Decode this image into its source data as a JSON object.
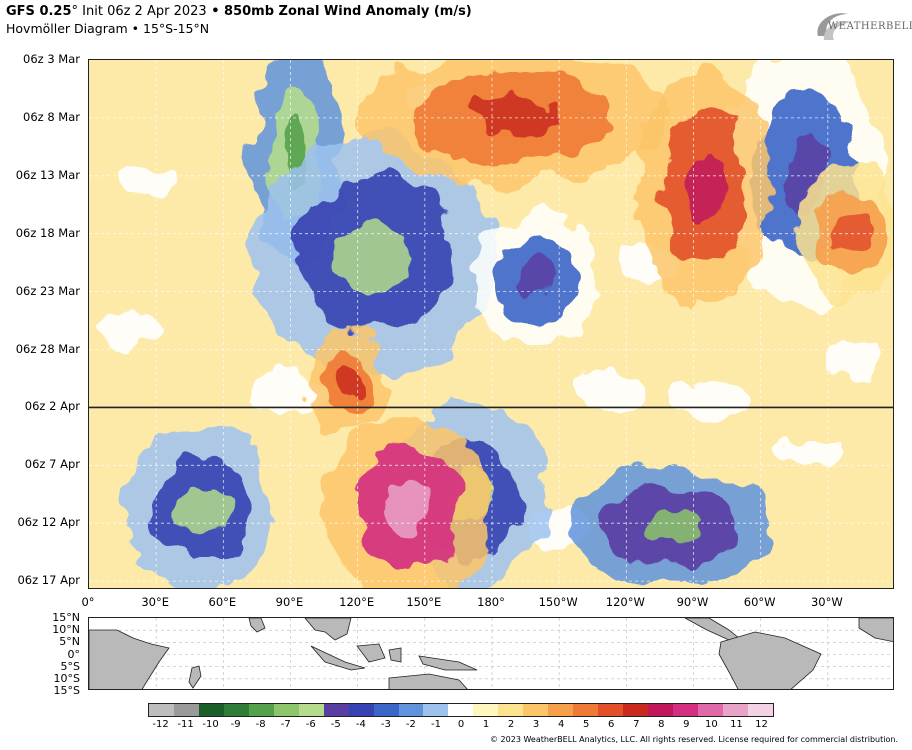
{
  "title": {
    "model": "GFS 0.25",
    "degree": "°",
    "init": " Init 06z 2 Apr 2023",
    "bullet": " • ",
    "field": "850mb Zonal Wind Anomaly (m/s)"
  },
  "subtitle": "Hovmöller Diagram • 15°S-15°N",
  "logo": {
    "text": "WEATHERBELL"
  },
  "chart_data": {
    "type": "heatmap",
    "title": "850mb Zonal Wind Anomaly (m/s)",
    "y_ticks": [
      "06z 3 Mar",
      "06z 8 Mar",
      "06z 13 Mar",
      "06z 18 Mar",
      "06z 23 Mar",
      "06z 28 Mar",
      "06z 2 Apr",
      "06z 7 Apr",
      "06z 12 Apr",
      "06z 17 Apr"
    ],
    "x_ticks": [
      "0°",
      "30°E",
      "60°E",
      "90°E",
      "120°E",
      "150°E",
      "180°",
      "150°W",
      "120°W",
      "90°W",
      "60°W",
      "30°W"
    ],
    "x_range": [
      0,
      360
    ],
    "init_line": "06z 2 Apr",
    "grid": true,
    "colorbar": {
      "labels": [
        "-12",
        "-11",
        "-10",
        "-9",
        "-8",
        "-7",
        "-6",
        "-5",
        "-4",
        "-3",
        "-2",
        "-1",
        "0",
        "1",
        "2",
        "3",
        "4",
        "5",
        "6",
        "7",
        "8",
        "9",
        "10",
        "11",
        "12"
      ],
      "colors": [
        "#bdbdbd",
        "#9a9a9a",
        "#1b5e2a",
        "#2f7d38",
        "#55a04a",
        "#8cc56a",
        "#b4dc8c",
        "#5a3fa3",
        "#3642b1",
        "#3a66c8",
        "#5f94dd",
        "#9dc2ee",
        "#ffffff",
        "#fff6c0",
        "#fde38e",
        "#fbc56a",
        "#f7a04a",
        "#ef7a36",
        "#e2502a",
        "#c92a1e",
        "#c0185a",
        "#d42e80",
        "#e06aa8",
        "#e9a2c8",
        "#f2d2e4"
      ]
    },
    "features": [
      {
        "type": "easterly",
        "lon": [
          75,
          110
        ],
        "t": [
          -30,
          -14
        ],
        "v": -6
      },
      {
        "type": "easterly",
        "lon": [
          80,
          175
        ],
        "t": [
          -22,
          -4
        ],
        "v": -4
      },
      {
        "type": "easterly",
        "lon": [
          175,
          225
        ],
        "t": [
          -16,
          -6
        ],
        "v": -3
      },
      {
        "type": "easterly",
        "lon": [
          140,
          200
        ],
        "t": [
          1,
          15
        ],
        "v": -4
      },
      {
        "type": "easterly",
        "lon": [
          220,
          300
        ],
        "t": [
          6,
          15
        ],
        "v": -5
      },
      {
        "type": "easterly",
        "lon": [
          20,
          80
        ],
        "t": [
          3,
          15
        ],
        "v": -4
      },
      {
        "type": "easterly",
        "lon": [
          290,
          350
        ],
        "t": [
          -30,
          -10
        ],
        "v": -3
      },
      {
        "type": "westerly",
        "lon": [
          130,
          250
        ],
        "t": [
          -30,
          -20
        ],
        "v": 5
      },
      {
        "type": "westerly",
        "lon": [
          250,
          300
        ],
        "t": [
          -28,
          -10
        ],
        "v": 6
      },
      {
        "type": "westerly",
        "lon": [
          110,
          175
        ],
        "t": [
          2,
          16
        ],
        "v": 9
      },
      {
        "type": "westerly",
        "lon": [
          100,
          130
        ],
        "t": [
          -6,
          2
        ],
        "v": 5
      },
      {
        "type": "westerly",
        "lon": [
          320,
          360
        ],
        "t": [
          -20,
          -10
        ],
        "v": 4
      }
    ]
  },
  "map": {
    "lat_ticks": [
      "15°N",
      "10°N",
      "5°N",
      "0°",
      "5°S",
      "10°S",
      "15°S"
    ]
  },
  "copyright": "© 2023 WeatherBELL Analytics, LLC. All rights reserved. License required for commercial distribution."
}
